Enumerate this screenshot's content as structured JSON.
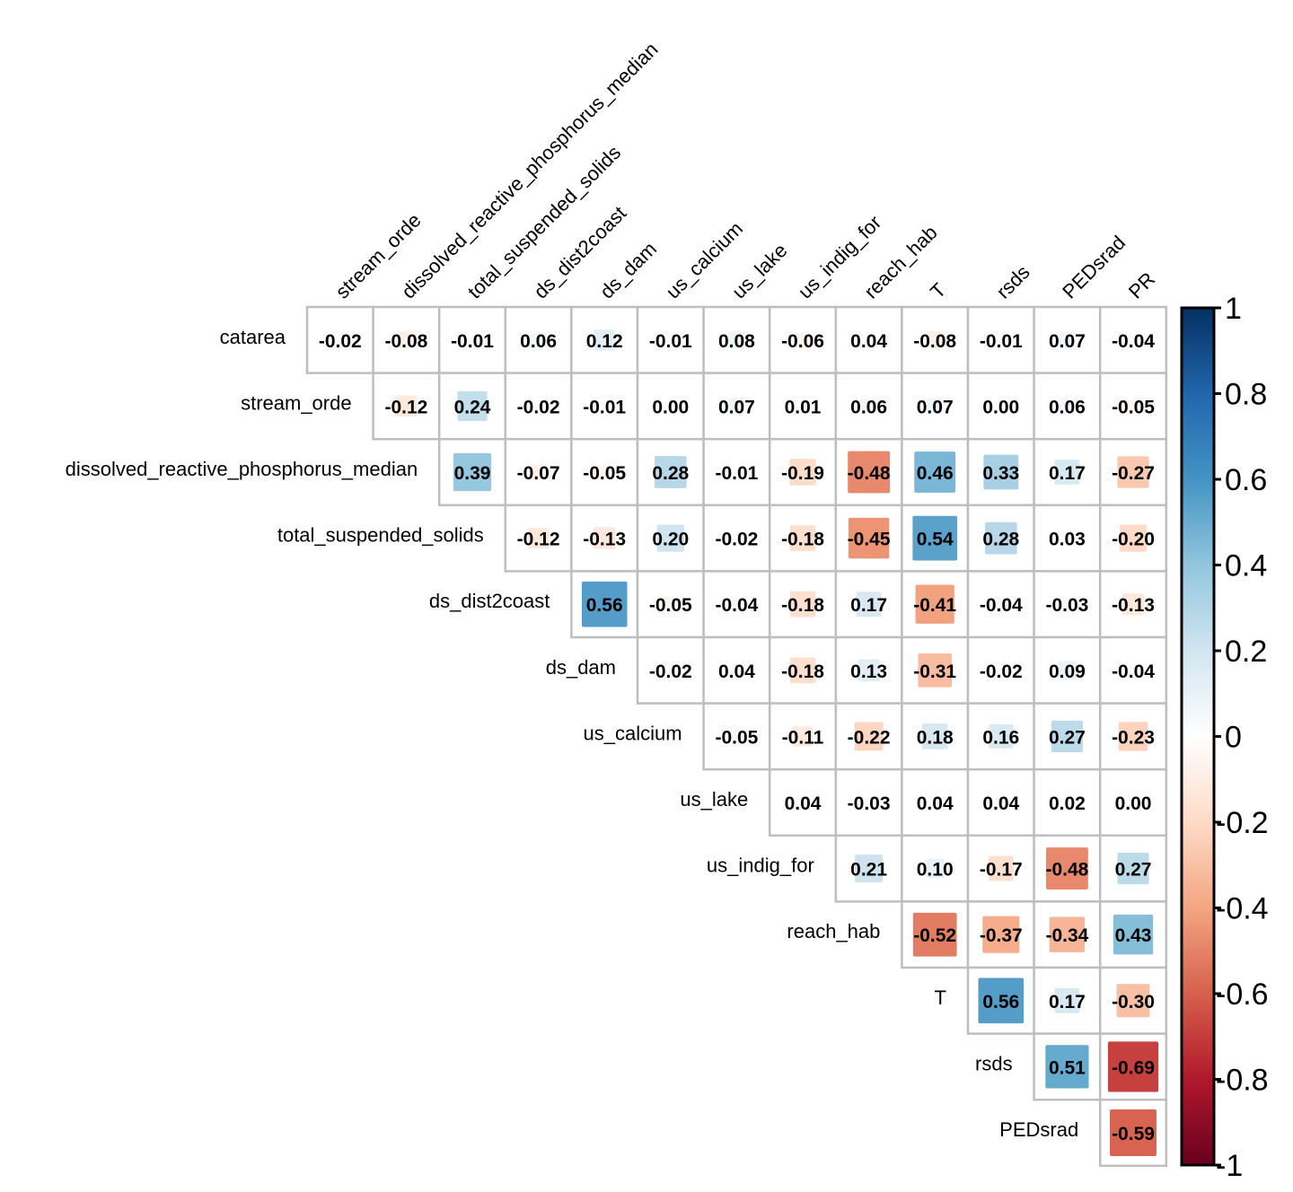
{
  "chart_data": {
    "type": "heatmap",
    "subtype": "correlation-matrix-upper-triangle",
    "title": "",
    "row_labels": [
      "catarea",
      "stream_orde",
      "dissolved_reactive_phosphorus_median",
      "total_suspended_solids",
      "ds_dist2coast",
      "ds_dam",
      "us_calcium",
      "us_lake",
      "us_indig_for",
      "reach_hab",
      "T",
      "rsds",
      "PEDsrad"
    ],
    "col_labels": [
      "stream_orde",
      "dissolved_reactive_phosphorus_median",
      "total_suspended_solids",
      "ds_dist2coast",
      "ds_dam",
      "us_calcium",
      "us_lake",
      "us_indig_for",
      "reach_hab",
      "T",
      "rsds",
      "PEDsrad",
      "PR"
    ],
    "values": [
      [
        -0.02,
        -0.08,
        -0.01,
        0.06,
        0.12,
        -0.01,
        0.08,
        -0.06,
        0.04,
        -0.08,
        -0.01,
        0.07,
        -0.04
      ],
      [
        -0.12,
        0.24,
        -0.02,
        -0.01,
        0.0,
        0.07,
        0.01,
        0.06,
        0.07,
        0.0,
        0.06,
        -0.05
      ],
      [
        0.39,
        -0.07,
        -0.05,
        0.28,
        -0.01,
        -0.19,
        -0.48,
        0.46,
        0.33,
        0.17,
        -0.27
      ],
      [
        -0.12,
        -0.13,
        0.2,
        -0.02,
        -0.18,
        -0.45,
        0.54,
        0.28,
        0.03,
        -0.2
      ],
      [
        0.56,
        -0.05,
        -0.04,
        -0.18,
        0.17,
        -0.41,
        -0.04,
        -0.03,
        -0.13
      ],
      [
        -0.02,
        0.04,
        -0.18,
        0.13,
        -0.31,
        -0.02,
        0.09,
        -0.04
      ],
      [
        -0.05,
        -0.11,
        -0.22,
        0.18,
        0.16,
        0.27,
        -0.23
      ],
      [
        0.04,
        -0.03,
        0.04,
        0.04,
        0.02,
        0.0
      ],
      [
        0.21,
        0.1,
        -0.17,
        -0.48,
        0.27
      ],
      [
        -0.52,
        -0.37,
        -0.34,
        0.43
      ],
      [
        0.56,
        0.17,
        -0.3
      ],
      [
        0.51,
        -0.69
      ],
      [
        -0.59
      ]
    ],
    "value_range": [
      -1,
      1
    ],
    "colorbar": {
      "ticks": [
        1,
        0.8,
        0.6,
        0.4,
        0.2,
        0,
        -0.2,
        -0.4,
        -0.6,
        -0.8,
        -1
      ],
      "tick_labels": [
        "1",
        "0.8",
        "0.6",
        "0.4",
        "0.2",
        "0",
        "-0.2",
        "-0.4",
        "-0.6",
        "-0.8",
        "-1"
      ],
      "placement": "right",
      "palette": [
        "#67001F",
        "#B2182B",
        "#D6604D",
        "#F4A582",
        "#FDDBC7",
        "#FFFFFF",
        "#D1E5F0",
        "#92C5DE",
        "#4393C3",
        "#2166AC",
        "#053061"
      ]
    },
    "grid_color": "#BEBEBE",
    "text_color": "#000000"
  }
}
